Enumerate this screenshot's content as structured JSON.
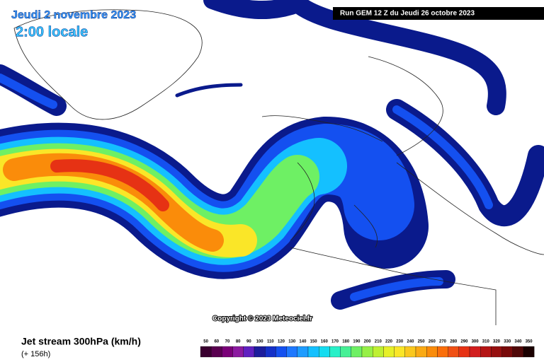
{
  "header": {
    "date": "Jeudi 2 novembre 2023",
    "time": "2:00 locale",
    "run": "Run GEM 12 Z du Jeudi 26 octobre 2023"
  },
  "copyright": "Copyright © 2023 Meteociel.fr",
  "footer": {
    "title": "Jet stream 300hPa (km/h)",
    "lead": "(+ 156h)"
  },
  "legend": {
    "values": [
      50,
      60,
      70,
      80,
      90,
      100,
      110,
      120,
      130,
      140,
      150,
      160,
      170,
      180,
      190,
      200,
      210,
      220,
      230,
      240,
      250,
      260,
      270,
      280,
      290,
      300,
      310,
      320,
      330,
      340,
      350
    ],
    "colors": [
      "#3a0030",
      "#5a0050",
      "#7a0078",
      "#8c1aa0",
      "#6020c0",
      "#1c1c9c",
      "#1430c8",
      "#1450f0",
      "#1e78ff",
      "#1e9cff",
      "#14c0ff",
      "#14dcf0",
      "#28f0c8",
      "#46f096",
      "#6ef064",
      "#96f046",
      "#bef032",
      "#e6f028",
      "#fae628",
      "#fac81e",
      "#faaa14",
      "#fa8c0a",
      "#fa6e0a",
      "#f05014",
      "#e63214",
      "#d21e1e",
      "#b41414",
      "#961010",
      "#780a0a",
      "#500808",
      "#1a0000"
    ]
  }
}
